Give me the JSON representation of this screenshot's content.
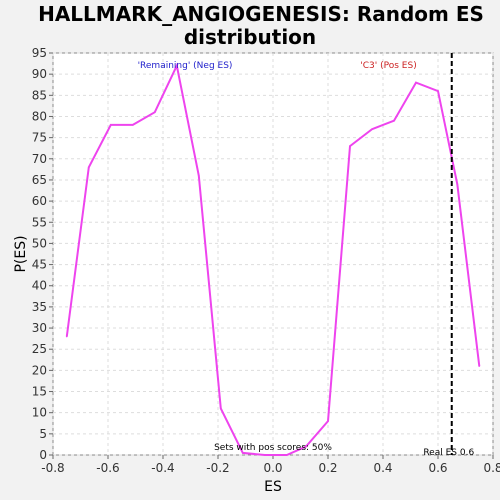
{
  "chart_data": {
    "type": "line",
    "title_line1": "HALLMARK_ANGIOGENESIS: Random ES",
    "title_line2": "distribution",
    "xlabel": "ES",
    "ylabel": "P(ES)",
    "xlim": [
      -0.8,
      0.8
    ],
    "ylim": [
      0,
      95
    ],
    "xticks": [
      "-0.8",
      "-0.6",
      "-0.4",
      "-0.2",
      "0.0",
      "0.2",
      "0.4",
      "0.6",
      "0.8"
    ],
    "yticks": [
      "0",
      "5",
      "10",
      "15",
      "20",
      "25",
      "30",
      "35",
      "40",
      "45",
      "50",
      "55",
      "60",
      "65",
      "70",
      "75",
      "80",
      "85",
      "90",
      "95"
    ],
    "grid": true,
    "series": [
      {
        "color": "#ee44ee",
        "x": [
          -0.75,
          -0.67,
          -0.59,
          -0.51,
          -0.43,
          -0.35,
          -0.27,
          -0.19,
          -0.11,
          -0.03,
          0.05,
          0.12,
          0.2,
          0.28,
          0.36,
          0.44,
          0.52,
          0.6,
          0.67,
          0.75
        ],
        "y": [
          28,
          68,
          78,
          78,
          81,
          92,
          66,
          11,
          0.5,
          0,
          0,
          2,
          8,
          73,
          77,
          79,
          88,
          86,
          64,
          21
        ]
      }
    ],
    "real_es": 0.6,
    "real_es_x": 0.65,
    "annotations": {
      "neg": "'Remaining' (Neg ES)",
      "pos": "'C3' (Pos ES)",
      "pos_scores": "Sets with pos scores: 50%",
      "real_es_label": "Real ES 0.6"
    },
    "colors": {
      "neg": "#2222cc",
      "pos": "#cc2222",
      "line": "#ee44ee"
    }
  }
}
